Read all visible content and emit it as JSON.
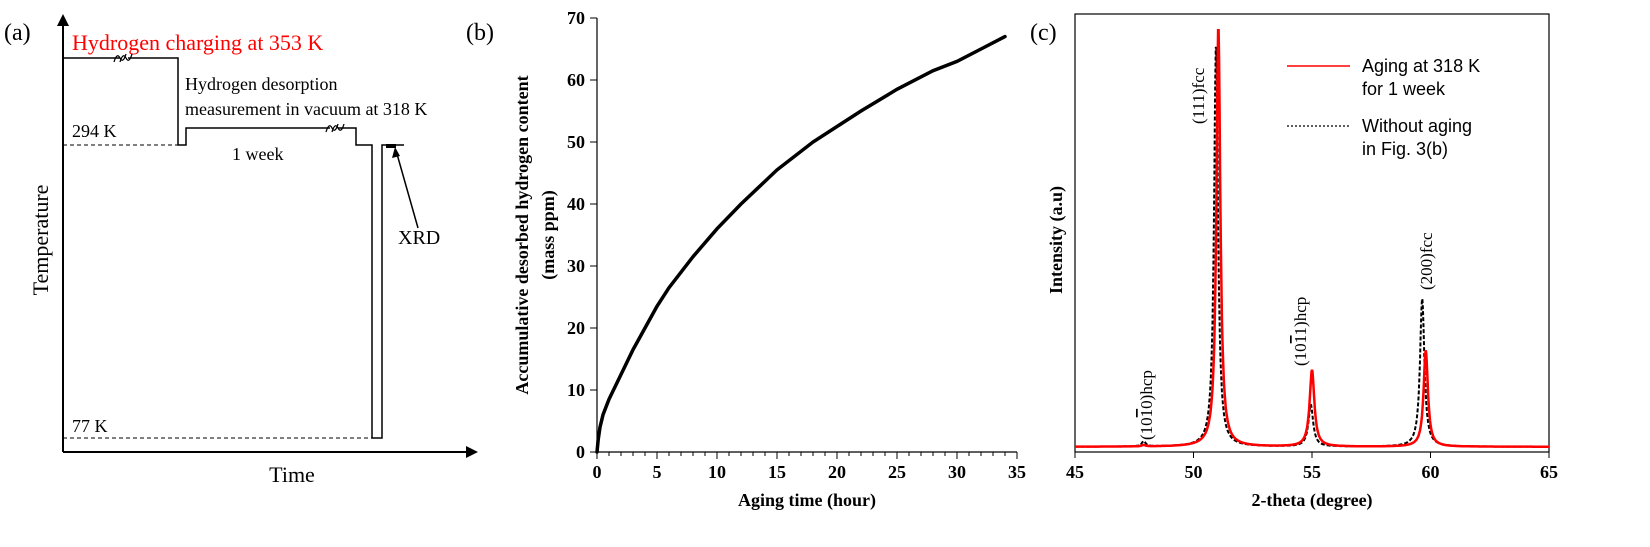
{
  "panels": {
    "a": {
      "label": "(a)",
      "title": "Hydrogen charging at 353 K",
      "annotation_line1": "Hydrogen desorption",
      "annotation_line2": "measurement in vacuum at 318 K",
      "duration_label": "1 week",
      "temp_294": "294 K",
      "temp_77": "77 K",
      "xrd_label": "XRD",
      "xlabel": "Time",
      "ylabel": "Temperature",
      "title_color": "#ff0000"
    },
    "b": {
      "label": "(b)"
    },
    "c": {
      "label": "(c)",
      "legend": {
        "aging_line1": "Aging at 318 K",
        "aging_line2": "for 1 week",
        "noaging_line1": "Without aging",
        "noaging_line2": "in Fig. 3(b)"
      },
      "peak_labels": {
        "hcp1010_pre": "(10",
        "hcp1010_bar": "1",
        "hcp1010_post": "0)hcp",
        "fcc111": "(111)fcc",
        "hcp1011_pre": "(10",
        "hcp1011_bar": "1",
        "hcp1011_post": "1)hcp",
        "fcc200": "(200)fcc"
      }
    }
  },
  "chart_data": [
    {
      "panel": "b",
      "type": "line",
      "xlabel": "Aging time (hour)",
      "ylabel_line1": "Accumulative desorbed hydrogen content",
      "ylabel_line2": "(mass ppm)",
      "xlim": [
        0,
        35
      ],
      "ylim": [
        0,
        70
      ],
      "xticks": [
        0,
        5,
        10,
        15,
        20,
        25,
        30,
        35
      ],
      "yticks": [
        0,
        10,
        20,
        30,
        40,
        50,
        60,
        70
      ],
      "grid": false,
      "series": [
        {
          "color": "#000000",
          "x": [
            0,
            0.1,
            0.25,
            0.5,
            1,
            2,
            3,
            4,
            5,
            6,
            8,
            10,
            12,
            15,
            18,
            20,
            22,
            25,
            28,
            30,
            32,
            34
          ],
          "y": [
            0,
            2,
            4,
            6,
            8.5,
            12.5,
            16.5,
            20,
            23.5,
            26.5,
            31.5,
            36,
            40,
            45.5,
            50,
            52.5,
            55,
            58.5,
            61.5,
            63,
            65,
            67
          ]
        }
      ]
    },
    {
      "panel": "c",
      "type": "line",
      "xlabel": "2-theta (degree)",
      "ylabel": "Intensity (a.u)",
      "xlim": [
        45,
        65
      ],
      "ylim": [
        0,
        100
      ],
      "xticks": [
        45,
        50,
        55,
        60,
        65
      ],
      "grid": false,
      "legend_position": "top-right",
      "series": [
        {
          "name": "Aging at 318 K for 1 week",
          "color": "#ff0000",
          "style": "solid",
          "peaks": [
            [
              47.9,
              0.3,
              0.1
            ],
            [
              51.05,
              96,
              0.1
            ],
            [
              55.0,
              17.5,
              0.12
            ],
            [
              59.8,
              22,
              0.11
            ]
          ]
        },
        {
          "name": "Without aging in Fig. 3(b)",
          "color": "#000000",
          "style": "dashed",
          "peaks": [
            [
              47.9,
              1.2,
              0.1
            ],
            [
              50.95,
              92,
              0.1
            ],
            [
              54.95,
              9.5,
              0.12
            ],
            [
              59.65,
              34,
              0.11
            ]
          ]
        }
      ],
      "baseline": 1.2
    }
  ]
}
